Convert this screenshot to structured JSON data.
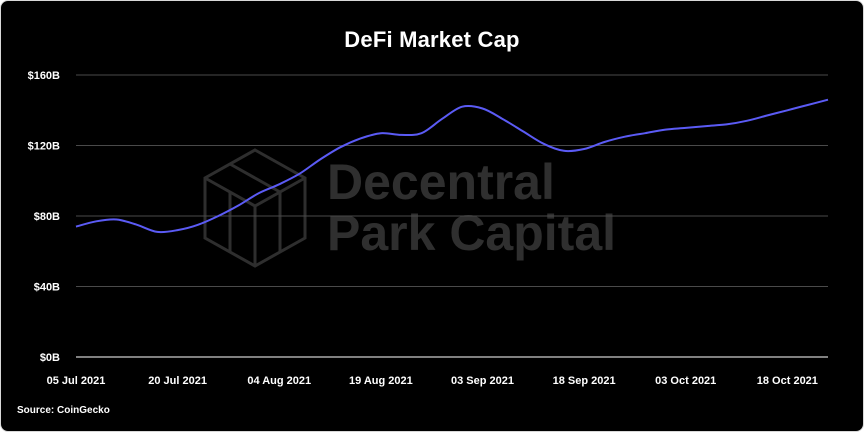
{
  "page": {
    "title": "DeFi Market Cap",
    "source": "Source: CoinGecko",
    "watermark_line1": "Decentral",
    "watermark_line2": "Park Capital",
    "background_color": "#000000",
    "grid_color": "#4a4a4a",
    "line_color": "#5b5bf5"
  },
  "chart_data": {
    "type": "line",
    "title": "DeFi Market Cap",
    "xlabel": "",
    "ylabel": "",
    "grid": true,
    "ylim": [
      0,
      160
    ],
    "yticks": [
      0,
      40,
      80,
      120,
      160
    ],
    "ytick_labels": [
      "$0B",
      "$40B",
      "$80B",
      "$120B",
      "$160B"
    ],
    "xticks": [
      {
        "day": 0,
        "label": "05 Jul 2021"
      },
      {
        "day": 15,
        "label": "20 Jul 2021"
      },
      {
        "day": 30,
        "label": "04 Aug 2021"
      },
      {
        "day": 45,
        "label": "19 Aug 2021"
      },
      {
        "day": 60,
        "label": "03 Sep 2021"
      },
      {
        "day": 75,
        "label": "18 Sep 2021"
      },
      {
        "day": 90,
        "label": "03 Oct 2021"
      },
      {
        "day": 105,
        "label": "18 Oct 2021"
      }
    ],
    "x_unit": "days from 05 Jul 2021",
    "series": [
      {
        "points": [
          [
            0,
            74
          ],
          [
            3,
            77
          ],
          [
            6,
            78
          ],
          [
            9,
            75
          ],
          [
            12,
            71
          ],
          [
            15,
            72
          ],
          [
            18,
            75
          ],
          [
            21,
            80
          ],
          [
            24,
            86
          ],
          [
            27,
            93
          ],
          [
            30,
            98
          ],
          [
            33,
            104
          ],
          [
            36,
            112
          ],
          [
            39,
            119
          ],
          [
            42,
            124
          ],
          [
            45,
            127
          ],
          [
            48,
            126
          ],
          [
            51,
            127
          ],
          [
            54,
            135
          ],
          [
            57,
            142
          ],
          [
            60,
            141
          ],
          [
            63,
            135
          ],
          [
            66,
            128
          ],
          [
            69,
            121
          ],
          [
            72,
            117
          ],
          [
            75,
            118
          ],
          [
            78,
            122
          ],
          [
            81,
            125
          ],
          [
            84,
            127
          ],
          [
            87,
            129
          ],
          [
            90,
            130
          ],
          [
            93,
            131
          ],
          [
            96,
            132
          ],
          [
            99,
            134
          ],
          [
            102,
            137
          ],
          [
            105,
            140
          ],
          [
            108,
            143
          ],
          [
            111,
            146
          ]
        ]
      }
    ]
  }
}
